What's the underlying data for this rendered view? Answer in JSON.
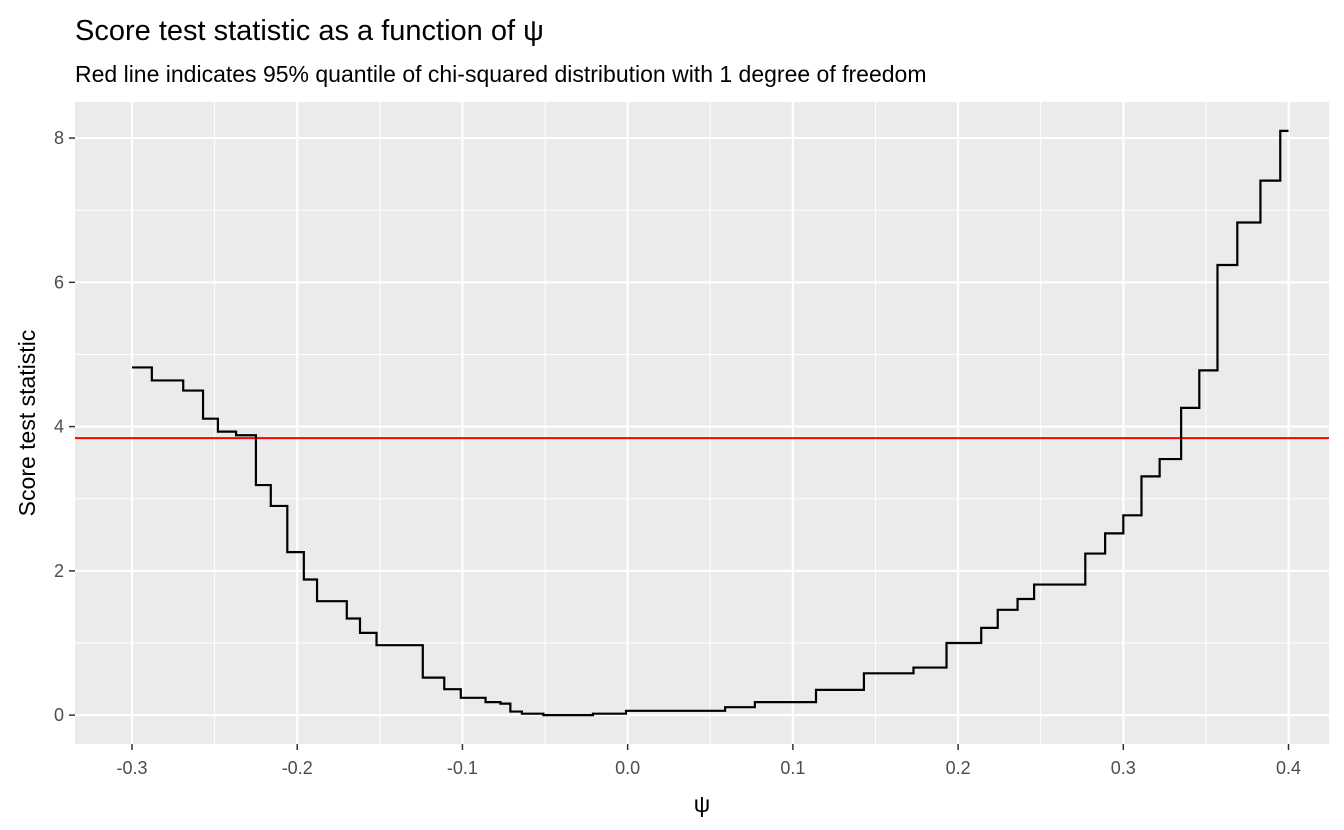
{
  "chart_data": {
    "type": "line",
    "line_shape": "step",
    "title": "Score test statistic as a function of ψ",
    "subtitle": "Red line indicates 95% quantile of chi-squared distribution with 1 degree of freedom",
    "xlabel": "ψ",
    "ylabel": "Score test statistic",
    "xlim": [
      -0.3345,
      0.4245
    ],
    "ylim": [
      -0.4,
      8.5
    ],
    "x_ticks": [
      -0.3,
      -0.2,
      -0.1,
      0.0,
      0.1,
      0.2,
      0.3,
      0.4
    ],
    "x_tick_labels": [
      "-0.3",
      "-0.2",
      "-0.1",
      "0.0",
      "0.1",
      "0.2",
      "0.3",
      "0.4"
    ],
    "y_ticks": [
      0,
      2,
      4,
      6,
      8
    ],
    "y_tick_labels": [
      "0",
      "2",
      "4",
      "6",
      "8"
    ],
    "grid": true,
    "reference_line": {
      "y": 3.84,
      "color": "#ff0000"
    },
    "series": [
      {
        "color": "#000000",
        "x": [
          -0.3,
          -0.288,
          -0.269,
          -0.257,
          -0.248,
          -0.237,
          -0.225,
          -0.216,
          -0.206,
          -0.196,
          -0.188,
          -0.17,
          -0.162,
          -0.152,
          -0.124,
          -0.118,
          -0.111,
          -0.101,
          -0.086,
          -0.077,
          -0.071,
          -0.064,
          -0.051,
          -0.021,
          -0.001,
          0.059,
          0.077,
          0.114,
          0.143,
          0.173,
          0.193,
          0.214,
          0.224,
          0.236,
          0.246,
          0.277,
          0.289,
          0.3,
          0.311,
          0.322,
          0.335,
          0.346,
          0.357,
          0.369,
          0.383,
          0.395,
          0.4
        ],
        "y": [
          4.82,
          4.64,
          4.5,
          4.11,
          3.93,
          3.88,
          3.19,
          2.9,
          2.26,
          1.88,
          1.58,
          1.34,
          1.14,
          0.97,
          0.52,
          0.52,
          0.36,
          0.24,
          0.18,
          0.16,
          0.05,
          0.02,
          0.0,
          0.02,
          0.06,
          0.11,
          0.18,
          0.35,
          0.58,
          0.66,
          1.0,
          1.21,
          1.46,
          1.61,
          1.81,
          2.24,
          2.52,
          2.77,
          3.31,
          3.55,
          4.26,
          4.78,
          6.24,
          6.83,
          7.41,
          8.1,
          8.1
        ]
      }
    ]
  }
}
